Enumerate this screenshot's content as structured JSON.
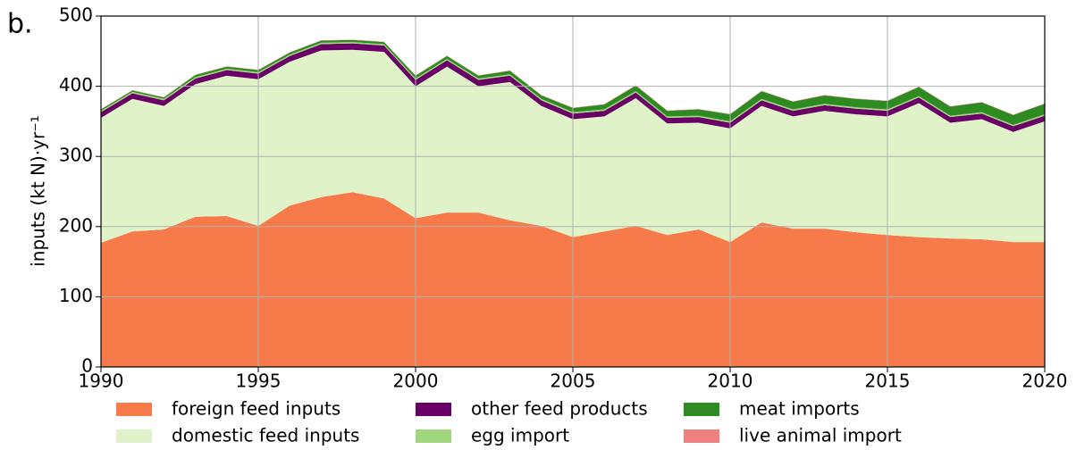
{
  "chart_data": {
    "type": "stacked_area",
    "panel_label": "b.",
    "y_label": "inputs (kt N)·yr⁻¹",
    "x": [
      1990,
      1991,
      1992,
      1993,
      1994,
      1995,
      1996,
      1997,
      1998,
      1999,
      2000,
      2001,
      2002,
      2003,
      2004,
      2005,
      2006,
      2007,
      2008,
      2009,
      2010,
      2011,
      2012,
      2013,
      2014,
      2015,
      2016,
      2017,
      2018,
      2019,
      2020
    ],
    "xlim": [
      1990,
      2020
    ],
    "xticks": [
      1990,
      1995,
      2000,
      2005,
      2010,
      2015,
      2020
    ],
    "ylim": [
      0,
      500
    ],
    "yticks": [
      0,
      100,
      200,
      300,
      400,
      500
    ],
    "grid": true,
    "legend": "below",
    "series": [
      {
        "name": "foreign feed inputs",
        "color": "#f77b4a",
        "values": [
          177,
          193,
          196,
          214,
          215,
          201,
          230,
          242,
          249,
          240,
          212,
          220,
          220,
          209,
          201,
          185,
          193,
          201,
          188,
          196,
          178,
          206,
          197,
          197,
          192,
          188,
          185,
          183,
          182,
          178,
          178
        ]
      },
      {
        "name": "domestic feed inputs",
        "color": "#e0f3c8",
        "values": [
          178,
          189,
          176,
          189,
          200,
          209,
          205,
          209,
          203,
          209,
          188,
          208,
          180,
          197,
          171,
          168,
          164,
          182,
          159,
          152,
          162,
          166,
          160,
          168,
          168,
          169,
          191,
          165,
          171,
          157,
          172
        ]
      },
      {
        "name": "other feed products",
        "color": "#6a0067",
        "values": [
          8,
          8,
          8,
          8,
          8,
          8,
          8,
          9,
          9,
          9,
          9,
          9,
          9,
          9,
          8,
          8,
          8,
          8,
          8,
          8,
          8,
          8,
          8,
          8,
          8,
          8,
          8,
          8,
          8,
          8,
          8
        ]
      },
      {
        "name": "egg import",
        "color": "#a0d67c",
        "values": [
          2,
          2,
          2,
          2,
          2,
          2,
          2,
          2,
          2,
          2,
          2,
          2,
          2,
          2,
          2,
          2,
          2,
          2,
          2,
          2,
          2,
          2,
          2,
          2,
          2,
          2,
          2,
          2,
          2,
          2,
          2
        ]
      },
      {
        "name": "meat imports",
        "color": "#2e8b22",
        "values": [
          2,
          2,
          2,
          3,
          3,
          3,
          3,
          3,
          3,
          3,
          4,
          4,
          4,
          5,
          5,
          6,
          7,
          8,
          8,
          9,
          10,
          11,
          11,
          12,
          12,
          12,
          13,
          13,
          14,
          14,
          15
        ]
      },
      {
        "name": "live animal import",
        "color": "#f08080",
        "values": [
          0.5,
          0.5,
          0.5,
          0.5,
          0.5,
          0.5,
          0.5,
          0.5,
          0.5,
          0.5,
          0.5,
          0.5,
          0.5,
          0.5,
          0.5,
          0.5,
          0.5,
          0.5,
          0.5,
          0.5,
          0.5,
          0.5,
          0.5,
          0.5,
          0.5,
          0.5,
          0.5,
          0.5,
          0.5,
          0.5,
          0.5
        ]
      }
    ]
  }
}
